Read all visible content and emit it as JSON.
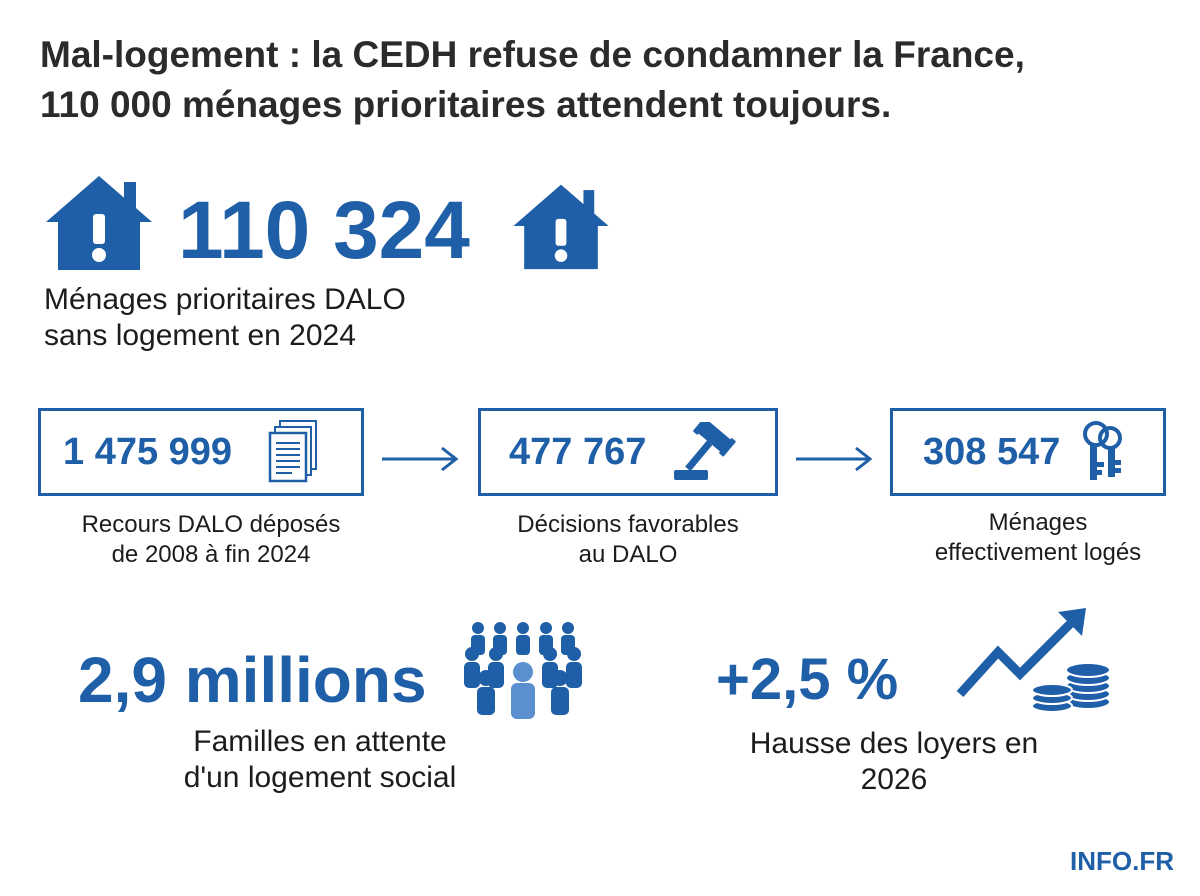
{
  "title": {
    "line1": "Mal-logement : la CEDH refuse de condamner la France,",
    "line2": "110 000 ménages prioritaires attendent toujours."
  },
  "headline_stat": {
    "value": "110 324",
    "label_line1": "Ménages prioritaires DALO",
    "label_line2": "sans logement en 2024",
    "icon": "house-alert-icon"
  },
  "pipeline": [
    {
      "value": "1 475 999",
      "label_line1": "Recours DALO déposés",
      "label_line2": "de 2008 à fin 2024",
      "icon": "documents-icon"
    },
    {
      "value": "477 767",
      "label_line1": "Décisions favorables",
      "label_line2": "au DALO",
      "icon": "gavel-icon"
    },
    {
      "value": "308 547",
      "label_line1": "Ménages",
      "label_line2": "effectivement logés",
      "icon": "keys-icon"
    }
  ],
  "bottom_stats": [
    {
      "value": "2,9 millions",
      "label_line1": "Familles en attente",
      "label_line2": "d'un logement social",
      "icon": "crowd-icon"
    },
    {
      "value": "+2,5 %",
      "label_line1": "Hausse des loyers en",
      "label_line2": "2026",
      "icon": "rising-chart-coins-icon"
    }
  ],
  "footer": {
    "brand": "INFO.FR"
  },
  "colors": {
    "accent": "#1f5fa8",
    "text": "#1c1c1c"
  }
}
